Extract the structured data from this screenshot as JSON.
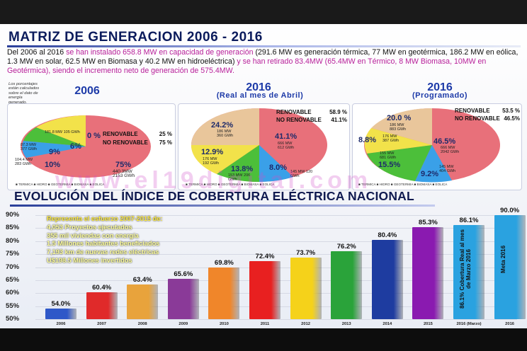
{
  "title": "MATRIZ DE GENERACION 2006 - 2016",
  "intro": {
    "part1": "Del 2006 al 2016 ",
    "part2": "se han instalado 658.8 MW en capacidad de generación",
    "part3": " (291.6 MW es generación  térmica, 77 MW en geotérmica, 186.2 MW en eólica, 1.3 MW en solar, 62.5 MW en Biomasa y 40.2 MW en hidroeléctrica) ",
    "part4": "y se han retirado 83.4MW (65.4MW en Térmico, 8 MW Biomasa, 10MW en Geotérmica), siendo el incremento neto de generación de 575.4MW."
  },
  "note": "Los porcentajes están calculados sobre el dato de energía generado.",
  "pies": [
    {
      "year": "2006",
      "renovable": "RENOVABLE",
      "renovable_val": "25 %",
      "no_renovable": "NO RENOVABLE",
      "no_renovable_val": "75 %",
      "labels": [
        "181.8 MW 105 GWh",
        "0 %",
        "6%",
        "87.3 MW 377 GWh",
        "9%",
        "104.4 MW 283 GWh",
        "10%",
        "75%",
        "440.3MW 2153 GWh"
      ]
    },
    {
      "year": "2016",
      "subtitle": "(Real al mes de Abril)",
      "renovable": "RENOVABLE",
      "renovable_val": "58.9 %",
      "no_renovable": "NO RENOVABLE",
      "no_renovable_val": "41.1%",
      "labels": [
        "24.2%",
        "186 MW 360 GWh",
        "41.1%",
        "666 MW 612 GWh",
        "12.9%",
        "176 MW 192 GWh",
        "13.8%",
        "153 MW 206 GWh",
        "8.0%",
        "145 MW 120 GWh"
      ]
    },
    {
      "year": "2016",
      "subtitle": "(Programado)",
      "renovable": "RENOVABLE",
      "renovable_val": "53.5 %",
      "no_renovable": "NO RENOVABLE",
      "no_renovable_val": "46.5%",
      "labels": [
        "20.0 %",
        "186 MW 883 GWh",
        "8.8%",
        "176 MW 387 GWh",
        "46.5%",
        "666 MW 2042 GWh",
        "15.5%",
        "155 MW 681 GWh",
        "9.2%",
        "145 MW 404 GWh"
      ]
    }
  ],
  "legend": [
    "TERMICA",
    "HIDRO",
    "GEOTERMIA",
    "BIOMASA",
    "EOLICA"
  ],
  "watermark": "www.el19digital.com",
  "title2": "EVOLUCIÓN DEL ÍNDICE DE COBERTURA ELÉCTRICA NACIONAL",
  "info": {
    "heading": "Representa el esfuerzo 2007-2015 de:",
    "lines": [
      "4,053 Proyectos ejecutados",
      "355 mil viviendas con energía",
      "1.5 Millones habitantes beneficiados",
      "7,193 km de nuevas redes eléctricas",
      "U$198.5 Millones invertidos"
    ]
  },
  "chart_data": {
    "type": "bar",
    "categories": [
      "2006",
      "2007",
      "2008",
      "2009",
      "2010",
      "2011",
      "2012",
      "2013",
      "2014",
      "2015",
      "2016 (Marzo)",
      "2016"
    ],
    "values": [
      54.0,
      60.4,
      63.4,
      65.6,
      69.8,
      72.4,
      73.7,
      76.2,
      80.4,
      85.3,
      86.1,
      90.0
    ],
    "value_labels": [
      "54.0%",
      "60.4%",
      "63.4%",
      "65.6%",
      "69.8%",
      "72.4%",
      "73.7%",
      "76.2%",
      "80.4%",
      "85.3%",
      "86.1%",
      "90.0%"
    ],
    "colors": [
      "#2f58c8",
      "#e02a2a",
      "#e8a33c",
      "#8a3a98",
      "#f0862a",
      "#e82020",
      "#f5d21a",
      "#2aa33a",
      "#1e3ca0",
      "#8a1ab0",
      "#2aa2e0",
      "#2aa2e0"
    ],
    "bar_notes": {
      "10": "86.1% Cobertura Real al mes de Marzo 2016",
      "11": "Meta 2016"
    },
    "yticks": [
      "90%",
      "85%",
      "80%",
      "75%",
      "70%",
      "65%",
      "60%",
      "55%",
      "50%"
    ],
    "ylim": [
      50,
      90
    ]
  }
}
